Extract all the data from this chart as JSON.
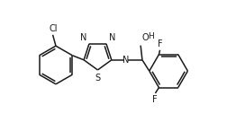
{
  "bg_color": "#ffffff",
  "line_color": "#1a1a1a",
  "line_width": 1.1,
  "font_size": 6.5,
  "figsize": [
    2.72,
    1.36
  ],
  "dpi": 100,
  "xlim": [
    -1.5,
    10.5
  ],
  "ylim": [
    -2.5,
    3.5
  ]
}
